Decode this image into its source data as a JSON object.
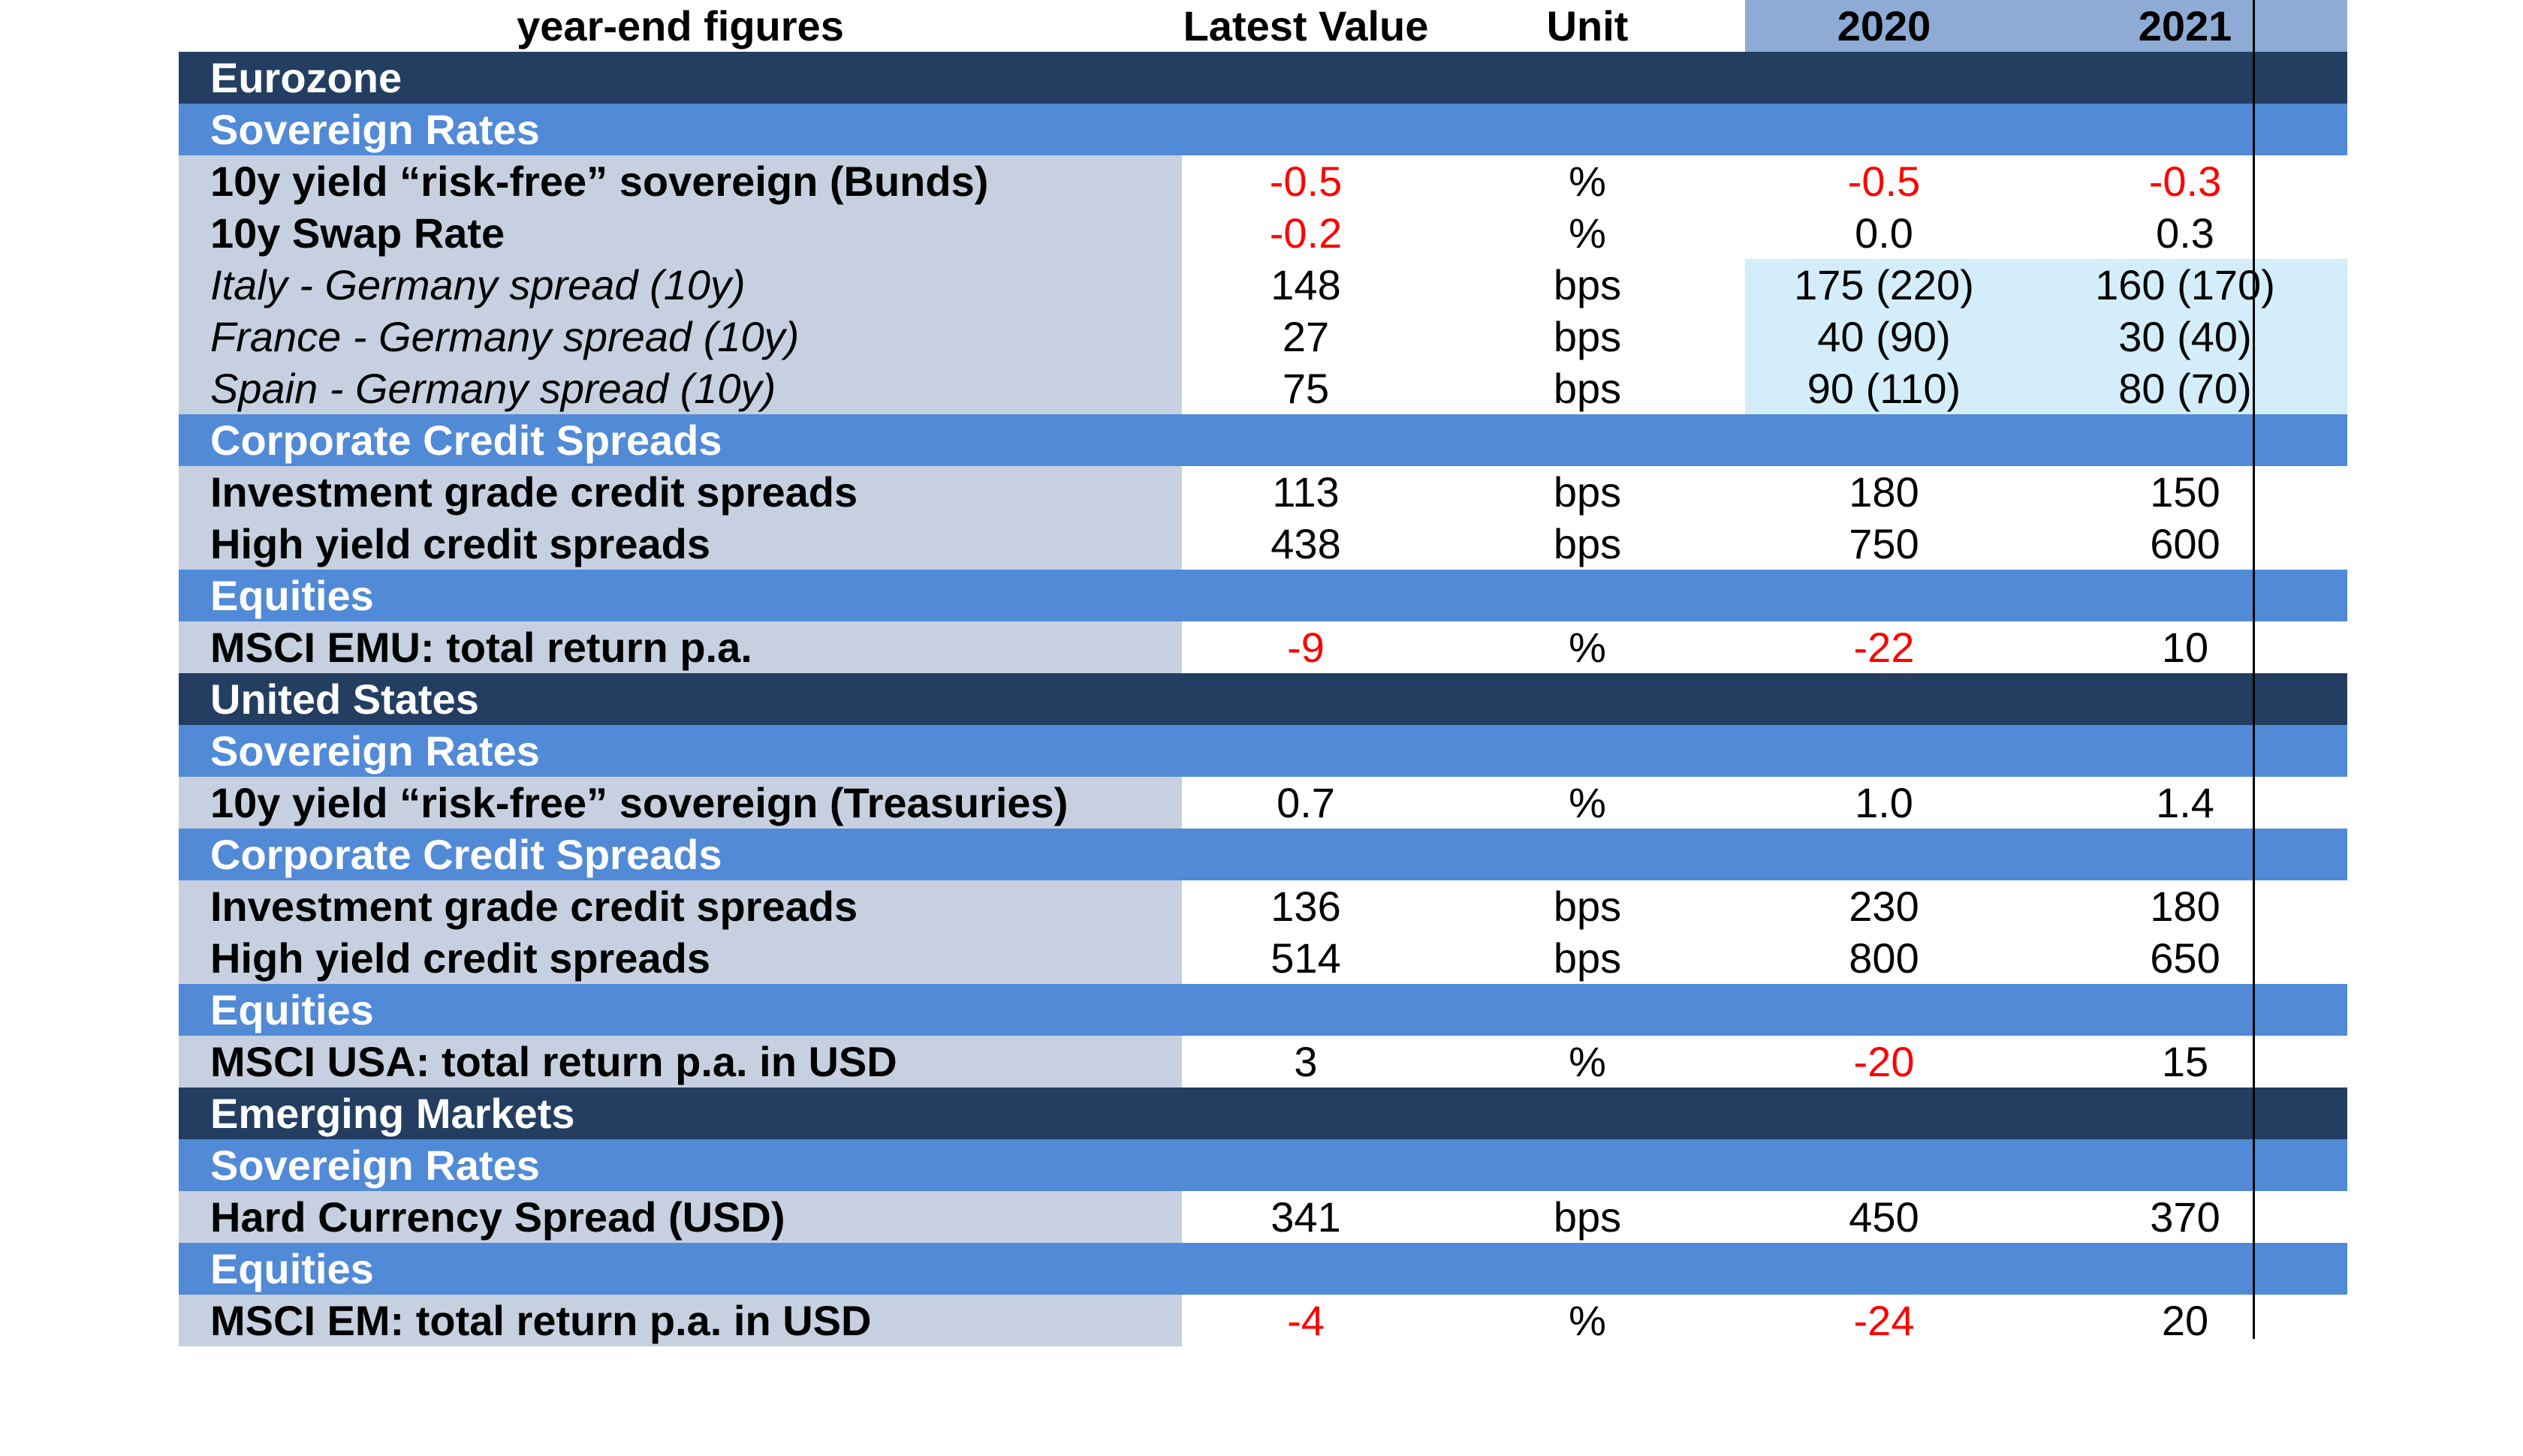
{
  "columns": {
    "label": "year-end figures",
    "latest": "Latest Value",
    "unit": "Unit",
    "y2020": "2020",
    "y2021": "2021"
  },
  "colors": {
    "region_band": "#233e61",
    "section_band": "#518ad6",
    "label_shade": "#c7d0e0",
    "year_header": "#8eabd6",
    "negative": "#ff0000",
    "highlight": "#d3eefa"
  },
  "eurozone": {
    "name": "Eurozone",
    "sovereign": {
      "title": "Sovereign Rates",
      "bunds": {
        "label": "10y yield “risk-free” sovereign (Bunds)",
        "latest": "-0.5",
        "unit": "%",
        "y2020": "-0.5",
        "y2021": "-0.3"
      },
      "swap": {
        "label": "10y Swap Rate",
        "latest": "-0.2",
        "unit": "%",
        "y2020": "0.0",
        "y2021": "0.3"
      },
      "italy": {
        "label": "Italy - Germany spread (10y)",
        "latest": "148",
        "unit": "bps",
        "y2020": "175 (220)",
        "y2021": "160 (170)"
      },
      "france": {
        "label": "France - Germany spread (10y)",
        "latest": "27",
        "unit": "bps",
        "y2020": "40 (90)",
        "y2021": "30 (40)"
      },
      "spain": {
        "label": "Spain - Germany spread (10y)",
        "latest": "75",
        "unit": "bps",
        "y2020": "90 (110)",
        "y2021": "80 (70)"
      }
    },
    "credit": {
      "title": "Corporate Credit Spreads",
      "ig": {
        "label": "Investment grade credit spreads",
        "latest": "113",
        "unit": "bps",
        "y2020": "180",
        "y2021": "150"
      },
      "hy": {
        "label": "High yield credit spreads",
        "latest": "438",
        "unit": "bps",
        "y2020": "750",
        "y2021": "600"
      }
    },
    "equities": {
      "title": "Equities",
      "msci": {
        "label": "MSCI EMU: total return p.a.",
        "latest": "-9",
        "unit": "%",
        "y2020": "-22",
        "y2021": "10"
      }
    }
  },
  "us": {
    "name": "United States",
    "sovereign": {
      "title": "Sovereign Rates",
      "treasuries": {
        "label": "10y yield “risk-free” sovereign (Treasuries)",
        "latest": "0.7",
        "unit": "%",
        "y2020": "1.0",
        "y2021": "1.4"
      }
    },
    "credit": {
      "title": "Corporate Credit Spreads",
      "ig": {
        "label": "Investment grade credit spreads",
        "latest": "136",
        "unit": "bps",
        "y2020": "230",
        "y2021": "180"
      },
      "hy": {
        "label": "High yield credit spreads",
        "latest": "514",
        "unit": "bps",
        "y2020": "800",
        "y2021": "650"
      }
    },
    "equities": {
      "title": "Equities",
      "msci": {
        "label": "MSCI USA: total return p.a. in USD",
        "latest": "3",
        "unit": "%",
        "y2020": "-20",
        "y2021": "15"
      }
    }
  },
  "em": {
    "name": "Emerging Markets",
    "sovereign": {
      "title": "Sovereign Rates",
      "hard": {
        "label": "Hard Currency Spread (USD)",
        "latest": "341",
        "unit": "bps",
        "y2020": "450",
        "y2021": "370"
      }
    },
    "equities": {
      "title": "Equities",
      "msci": {
        "label": "MSCI EM: total return p.a. in USD",
        "latest": "-4",
        "unit": "%",
        "y2020": "-24",
        "y2021": "20"
      }
    }
  }
}
